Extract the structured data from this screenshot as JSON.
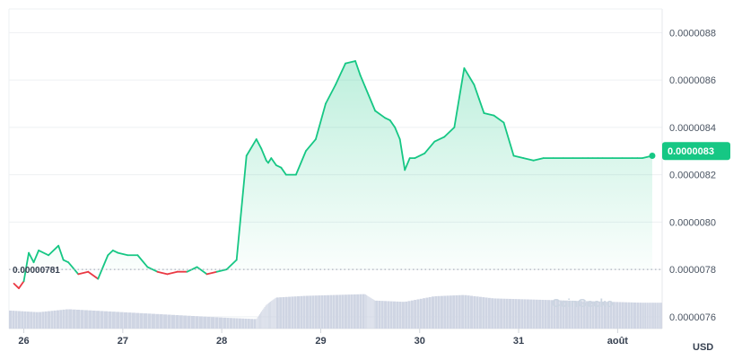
{
  "chart_data": {
    "type": "area",
    "currency": "USD",
    "watermark": "CoinGecko",
    "reference_value": 7.8e-06,
    "reference_label": "0.00000781",
    "current_value": 8.3e-06,
    "current_label": "0.0000083",
    "y_ticks": [
      "0.0000088",
      "0.0000086",
      "0.0000084",
      "0.0000082",
      "0.0000080",
      "0.0000078",
      "0.0000076"
    ],
    "y_tick_values": [
      8.8e-06,
      8.6e-06,
      8.4e-06,
      8.2e-06,
      8e-06,
      7.8e-06,
      7.6e-06
    ],
    "ylim": [
      7.55e-06,
      8.9e-06
    ],
    "x_ticks": [
      "26",
      "27",
      "28",
      "29",
      "30",
      "31",
      "août"
    ],
    "xlim": [
      0,
      6.6
    ],
    "x_tick_positions": [
      0.15,
      1.15,
      2.15,
      3.15,
      4.15,
      5.15,
      6.15
    ],
    "colors": {
      "up": "#16c784",
      "down": "#ea3943",
      "volume": "#cfd5e3",
      "badge": "#16c784"
    },
    "price": {
      "x": [
        0.05,
        0.1,
        0.15,
        0.2,
        0.25,
        0.3,
        0.4,
        0.5,
        0.55,
        0.6,
        0.7,
        0.8,
        0.9,
        1.0,
        1.05,
        1.1,
        1.2,
        1.3,
        1.4,
        1.5,
        1.6,
        1.7,
        1.8,
        1.9,
        2.0,
        2.1,
        2.2,
        2.3,
        2.4,
        2.5,
        2.55,
        2.6,
        2.62,
        2.65,
        2.7,
        2.75,
        2.8,
        2.9,
        3.0,
        3.1,
        3.2,
        3.3,
        3.4,
        3.5,
        3.55,
        3.6,
        3.7,
        3.8,
        3.85,
        3.9,
        3.95,
        4.0,
        4.05,
        4.1,
        4.2,
        4.3,
        4.4,
        4.5,
        4.6,
        4.7,
        4.75,
        4.8,
        4.9,
        5.0,
        5.1,
        5.2,
        5.3,
        5.4,
        5.5,
        5.6,
        5.7,
        5.8,
        5.85,
        5.9,
        5.95,
        6.0,
        6.1,
        6.2,
        6.3,
        6.35,
        6.4,
        6.5
      ],
      "y": [
        7.74e-06,
        7.72e-06,
        7.75e-06,
        7.87e-06,
        7.83e-06,
        7.88e-06,
        7.86e-06,
        7.9e-06,
        7.84e-06,
        7.83e-06,
        7.78e-06,
        7.79e-06,
        7.76e-06,
        7.86e-06,
        7.88e-06,
        7.87e-06,
        7.86e-06,
        7.86e-06,
        7.81e-06,
        7.79e-06,
        7.78e-06,
        7.79e-06,
        7.79e-06,
        7.81e-06,
        7.78e-06,
        7.79e-06,
        7.8e-06,
        7.84e-06,
        8.28e-06,
        8.35e-06,
        8.31e-06,
        8.26e-06,
        8.25e-06,
        8.27e-06,
        8.24e-06,
        8.23e-06,
        8.2e-06,
        8.2e-06,
        8.3e-06,
        8.35e-06,
        8.5e-06,
        8.58e-06,
        8.67e-06,
        8.68e-06,
        8.62e-06,
        8.57e-06,
        8.47e-06,
        8.44e-06,
        8.43e-06,
        8.4e-06,
        8.35e-06,
        8.22e-06,
        8.27e-06,
        8.27e-06,
        8.29e-06,
        8.34e-06,
        8.36e-06,
        8.4e-06,
        8.65e-06,
        8.58e-06,
        8.52e-06,
        8.46e-06,
        8.45e-06,
        8.42e-06,
        8.28e-06,
        8.27e-06,
        8.26e-06,
        8.27e-06,
        8.27e-06,
        8.27e-06,
        8.27e-06,
        8.27e-06,
        8.27e-06,
        8.27e-06,
        8.27e-06,
        8.27e-06,
        8.27e-06,
        8.27e-06,
        8.27e-06,
        8.27e-06,
        8.27e-06,
        8.28e-06
      ]
    },
    "volume": {
      "x": [
        0,
        0.3,
        0.6,
        1.0,
        1.4,
        1.8,
        2.2,
        2.5,
        2.6,
        2.7,
        3.0,
        3.3,
        3.6,
        3.7,
        4.0,
        4.3,
        4.6,
        4.9,
        5.2,
        5.5,
        5.8,
        6.1,
        6.4,
        6.6
      ],
      "rel": [
        0.42,
        0.38,
        0.45,
        0.4,
        0.35,
        0.3,
        0.25,
        0.22,
        0.55,
        0.72,
        0.76,
        0.78,
        0.8,
        0.65,
        0.62,
        0.75,
        0.78,
        0.7,
        0.68,
        0.66,
        0.64,
        0.62,
        0.6,
        0.6
      ]
    }
  }
}
